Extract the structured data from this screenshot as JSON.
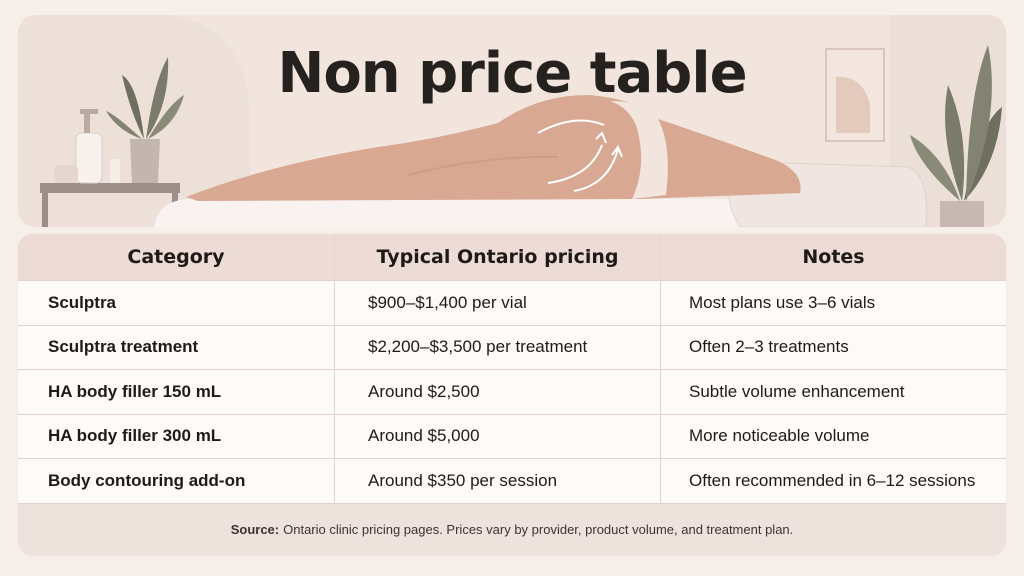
{
  "hero": {
    "title": "Non price table"
  },
  "table": {
    "headers": [
      "Category",
      "Typical Ontario pricing",
      "Notes"
    ],
    "rows": [
      [
        "Sculptra",
        "$900–$1,400 per vial",
        "Most plans use 3–6 vials"
      ],
      [
        "Sculptra treatment",
        "$2,200–$3,500 per treatment",
        "Often 2–3 treatments"
      ],
      [
        "HA body filler 150 mL",
        "Around $2,500",
        "Subtle volume enhancement"
      ],
      [
        "HA body filler 300 mL",
        "Around $5,000",
        "More noticeable volume"
      ],
      [
        "Body contouring add-on",
        "Around $350 per session",
        "Often recommended in 6–12 sessions"
      ]
    ]
  },
  "footer": {
    "source_label": "Source:",
    "source_text": "Ontario clinic pricing pages. Prices vary by provider, product volume, and treatment plan."
  }
}
